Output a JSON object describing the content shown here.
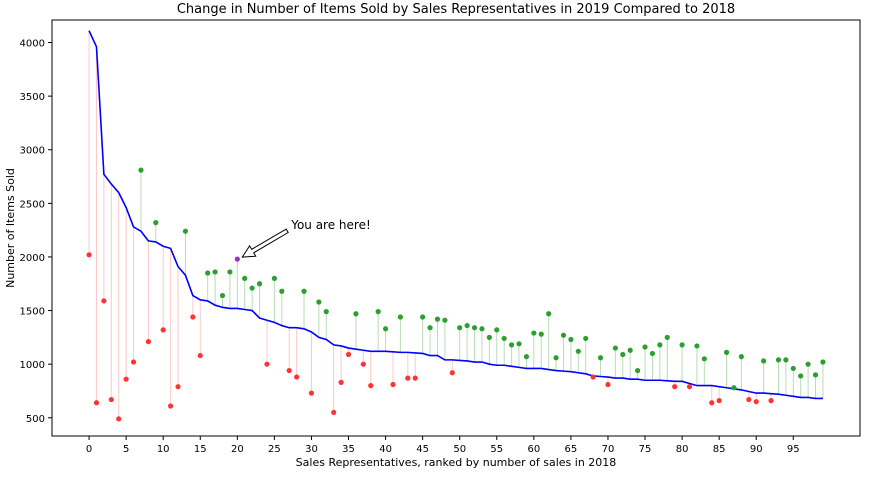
{
  "chart_data": {
    "type": "line",
    "title": "Change in Number of Items Sold by Sales Representatives in 2019 Compared to 2018",
    "xlabel": "Sales Representatives, ranked by number of sales in 2018",
    "ylabel": "Number of Items Sold",
    "xlim": [
      -5,
      104
    ],
    "ylim": [
      330,
      4210
    ],
    "x_ticks": [
      0,
      5,
      10,
      15,
      20,
      25,
      30,
      35,
      40,
      45,
      50,
      55,
      60,
      65,
      70,
      75,
      80,
      85,
      90,
      95
    ],
    "y_ticks": [
      500,
      1000,
      1500,
      2000,
      2500,
      3000,
      3500,
      4000
    ],
    "grid": false,
    "colors": {
      "line_2018": "#0000ff",
      "increase": "#2ca02c",
      "decrease": "#ff3333",
      "highlight": "#9933cc",
      "increase_stem": "#b8dcb8",
      "decrease_stem": "#ffc8c8"
    },
    "highlight_index": 20,
    "annotation": {
      "text": "You are here!",
      "x": 27,
      "y": 2300
    },
    "sales_2018": [
      4110,
      3960,
      2770,
      2680,
      2600,
      2460,
      2280,
      2240,
      2150,
      2140,
      2100,
      2080,
      1910,
      1830,
      1640,
      1600,
      1590,
      1550,
      1530,
      1520,
      1520,
      1510,
      1500,
      1430,
      1410,
      1390,
      1360,
      1340,
      1340,
      1330,
      1300,
      1250,
      1230,
      1180,
      1170,
      1150,
      1140,
      1130,
      1120,
      1120,
      1120,
      1115,
      1110,
      1110,
      1105,
      1100,
      1080,
      1080,
      1040,
      1040,
      1035,
      1030,
      1020,
      1020,
      1000,
      990,
      990,
      980,
      970,
      960,
      960,
      960,
      950,
      940,
      935,
      930,
      920,
      910,
      890,
      885,
      880,
      870,
      870,
      860,
      860,
      850,
      850,
      850,
      845,
      840,
      840,
      820,
      800,
      800,
      800,
      790,
      780,
      770,
      760,
      745,
      730,
      730,
      725,
      720,
      710,
      700,
      690,
      690,
      680,
      680
    ],
    "sales_2019": [
      2020,
      640,
      1590,
      670,
      490,
      860,
      1020,
      2810,
      1210,
      2320,
      1320,
      610,
      790,
      2240,
      1440,
      1080,
      1850,
      1860,
      1640,
      1860,
      1980,
      1800,
      1710,
      1750,
      1000,
      1800,
      1680,
      940,
      880,
      1680,
      730,
      1580,
      1490,
      550,
      830,
      1090,
      1470,
      1000,
      800,
      1490,
      1330,
      810,
      1440,
      870,
      870,
      1440,
      1340,
      1420,
      1410,
      920,
      1340,
      1360,
      1340,
      1330,
      1250,
      1320,
      1240,
      1180,
      1190,
      1070,
      1290,
      1280,
      1470,
      1060,
      1270,
      1230,
      1120,
      1240,
      880,
      1060,
      810,
      1150,
      1090,
      1130,
      940,
      1160,
      1100,
      1180,
      1250,
      790,
      1180,
      790,
      1170,
      1050,
      640,
      660,
      1110,
      780,
      1070,
      670,
      650,
      1030,
      660,
      1040,
      1040,
      960,
      890,
      1000,
      900,
      1020
    ]
  }
}
